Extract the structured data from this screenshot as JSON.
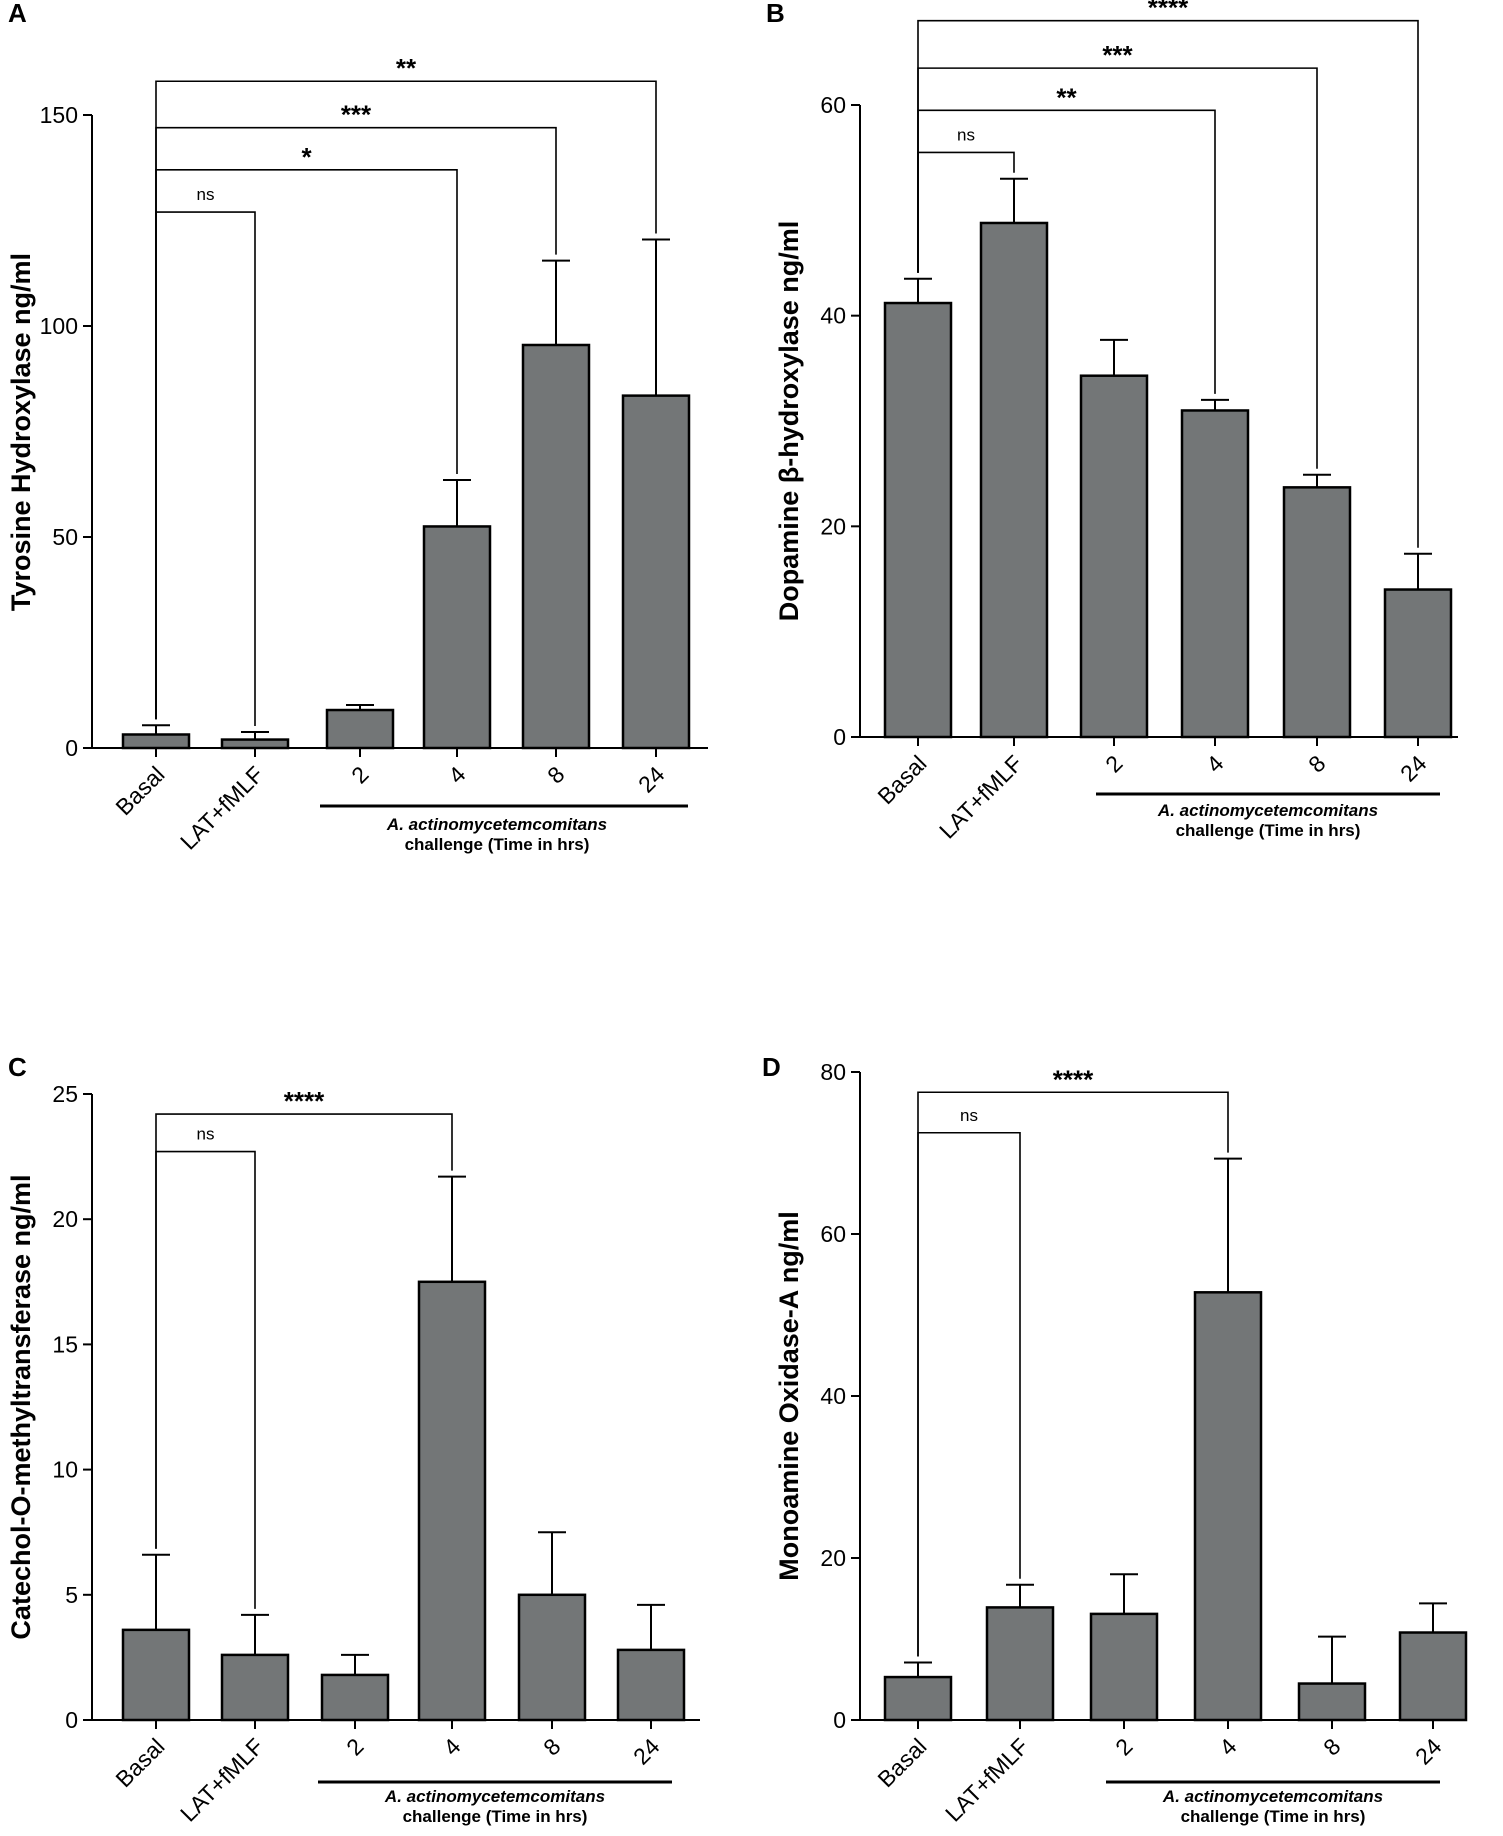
{
  "figure_title": "",
  "chart_data": [
    {
      "panel": "A",
      "type": "bar",
      "title": "",
      "ylabel": "Tyrosine Hydroxylase ng/ml",
      "xlabel": "",
      "ylim": [
        0,
        150
      ],
      "yticks": [
        0,
        50,
        100,
        150
      ],
      "categories": [
        "Basal",
        "LAT+fMLF",
        "2",
        "4",
        "8",
        "24"
      ],
      "values": [
        3.2,
        2.0,
        9.0,
        52.5,
        95.5,
        83.5
      ],
      "errors": [
        2.2,
        1.8,
        1.2,
        11.0,
        20.0,
        37.0
      ],
      "bar_color": "#737677",
      "group_label": [
        "A. actinomycetemcomitans",
        "challenge (Time in hrs)"
      ],
      "group_span": [
        2,
        5
      ],
      "comparisons": [
        {
          "from": 0,
          "to": 1,
          "label": "ns",
          "y": 127
        },
        {
          "from": 0,
          "to": 3,
          "label": "*",
          "y": 137
        },
        {
          "from": 0,
          "to": 4,
          "label": "***",
          "y": 147
        },
        {
          "from": 0,
          "to": 5,
          "label": "**",
          "y": 158
        }
      ]
    },
    {
      "panel": "B",
      "type": "bar",
      "title": "",
      "ylabel": "Dopamine β-hydroxylase ng/ml",
      "xlabel": "",
      "ylim": [
        0,
        60
      ],
      "yticks": [
        0,
        20,
        40,
        60
      ],
      "categories": [
        "Basal",
        "LAT+fMLF",
        "2",
        "4",
        "8",
        "24"
      ],
      "values": [
        41.2,
        48.8,
        34.3,
        31.0,
        23.7,
        14.0
      ],
      "errors": [
        2.3,
        4.2,
        3.4,
        1.0,
        1.2,
        3.4
      ],
      "bar_color": "#737677",
      "group_label": [
        "A. actinomycetemcomitans",
        "challenge (Time in hrs)"
      ],
      "group_span": [
        2,
        5
      ],
      "comparisons": [
        {
          "from": 0,
          "to": 1,
          "label": "ns",
          "y": 55.5
        },
        {
          "from": 0,
          "to": 3,
          "label": "**",
          "y": 59.5
        },
        {
          "from": 0,
          "to": 4,
          "label": "***",
          "y": 63.5
        },
        {
          "from": 0,
          "to": 5,
          "label": "****",
          "y": 68
        }
      ]
    },
    {
      "panel": "C",
      "type": "bar",
      "title": "",
      "ylabel": "Catechol-O-methyltransferase ng/ml",
      "xlabel": "",
      "ylim": [
        0,
        25
      ],
      "yticks": [
        0,
        5,
        10,
        15,
        20,
        25
      ],
      "categories": [
        "Basal",
        "LAT+fMLF",
        "2",
        "4",
        "8",
        "24"
      ],
      "values": [
        3.6,
        2.6,
        1.8,
        17.5,
        5.0,
        2.8
      ],
      "errors": [
        3.0,
        1.6,
        0.8,
        4.2,
        2.5,
        1.8
      ],
      "bar_color": "#737677",
      "group_label": [
        "A. actinomycetemcomitans",
        "challenge (Time in hrs)"
      ],
      "group_span": [
        2,
        5
      ],
      "comparisons": [
        {
          "from": 0,
          "to": 1,
          "label": "ns",
          "y": 22.7
        },
        {
          "from": 0,
          "to": 3,
          "label": "****",
          "y": 24.2
        }
      ]
    },
    {
      "panel": "D",
      "type": "bar",
      "title": "",
      "ylabel": "Monoamine Oxidase-A ng/ml",
      "xlabel": "",
      "ylim": [
        0,
        80
      ],
      "yticks": [
        0,
        20,
        40,
        60,
        80
      ],
      "categories": [
        "Basal",
        "LAT+fMLF",
        "2",
        "4",
        "8",
        "24"
      ],
      "values": [
        5.3,
        13.9,
        13.1,
        52.8,
        4.5,
        10.8
      ],
      "errors": [
        1.8,
        2.8,
        4.9,
        16.5,
        5.8,
        3.6
      ],
      "bar_color": "#737677",
      "group_label": [
        "A. actinomycetemcomitans",
        "challenge (Time in hrs)"
      ],
      "group_span": [
        2,
        5
      ],
      "comparisons": [
        {
          "from": 0,
          "to": 1,
          "label": "ns",
          "y": 72.5
        },
        {
          "from": 0,
          "to": 3,
          "label": "****",
          "y": 77.5
        }
      ]
    }
  ]
}
